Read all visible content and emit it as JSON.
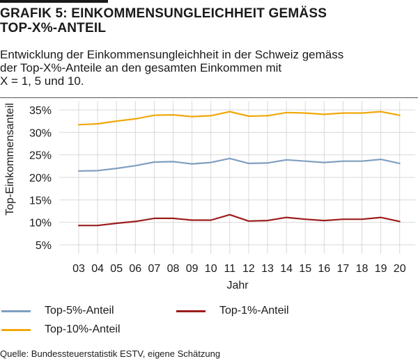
{
  "header": {
    "title_line1": "GRAFIK 5: EINKOMMENSUNGLEICHHEIT GEMÄSS",
    "title_line2": "TOP-X%-ANTEIL",
    "subtitle_line1": "Entwicklung der Einkommensungleichheit in der Schweiz gemäss",
    "subtitle_line2": "der Top-X%-Anteile an den gesamten Einkommen mit",
    "subtitle_line3": "X = 1, 5 und 10."
  },
  "source": "Quelle: Bundessteuerstatistik ESTV, eigene Schätzung",
  "chart_data": {
    "type": "line",
    "title": "",
    "xlabel": "Jahr",
    "ylabel": "Top-Einkommensanteil",
    "x": [
      "03",
      "04",
      "05",
      "06",
      "07",
      "08",
      "09",
      "10",
      "11",
      "12",
      "13",
      "14",
      "15",
      "16",
      "17",
      "18",
      "19",
      "20"
    ],
    "ylim": [
      3,
      37
    ],
    "yticks": [
      5,
      10,
      15,
      20,
      25,
      30,
      35
    ],
    "ytick_labels": [
      "5%",
      "10%",
      "15%",
      "20%",
      "25%",
      "30%",
      "35%"
    ],
    "grid": true,
    "legend_position": "bottom",
    "series": [
      {
        "name": "Top-5%-Anteil",
        "color": "#7f9fbf",
        "values": [
          21.4,
          21.5,
          22.0,
          22.6,
          23.4,
          23.5,
          23.0,
          23.3,
          24.2,
          23.1,
          23.2,
          23.9,
          23.6,
          23.3,
          23.6,
          23.6,
          24.0,
          23.1
        ]
      },
      {
        "name": "Top-10%-Anteil",
        "color": "#f0a80a",
        "values": [
          31.7,
          31.9,
          32.5,
          33.0,
          33.8,
          33.9,
          33.5,
          33.7,
          34.6,
          33.6,
          33.7,
          34.4,
          34.3,
          34.0,
          34.3,
          34.3,
          34.6,
          33.8
        ]
      },
      {
        "name": "Top-1%-Anteil",
        "color": "#9c1c1c",
        "values": [
          9.3,
          9.3,
          9.8,
          10.2,
          10.9,
          10.9,
          10.5,
          10.5,
          11.7,
          10.3,
          10.4,
          11.1,
          10.7,
          10.4,
          10.7,
          10.7,
          11.1,
          10.2
        ]
      }
    ]
  }
}
